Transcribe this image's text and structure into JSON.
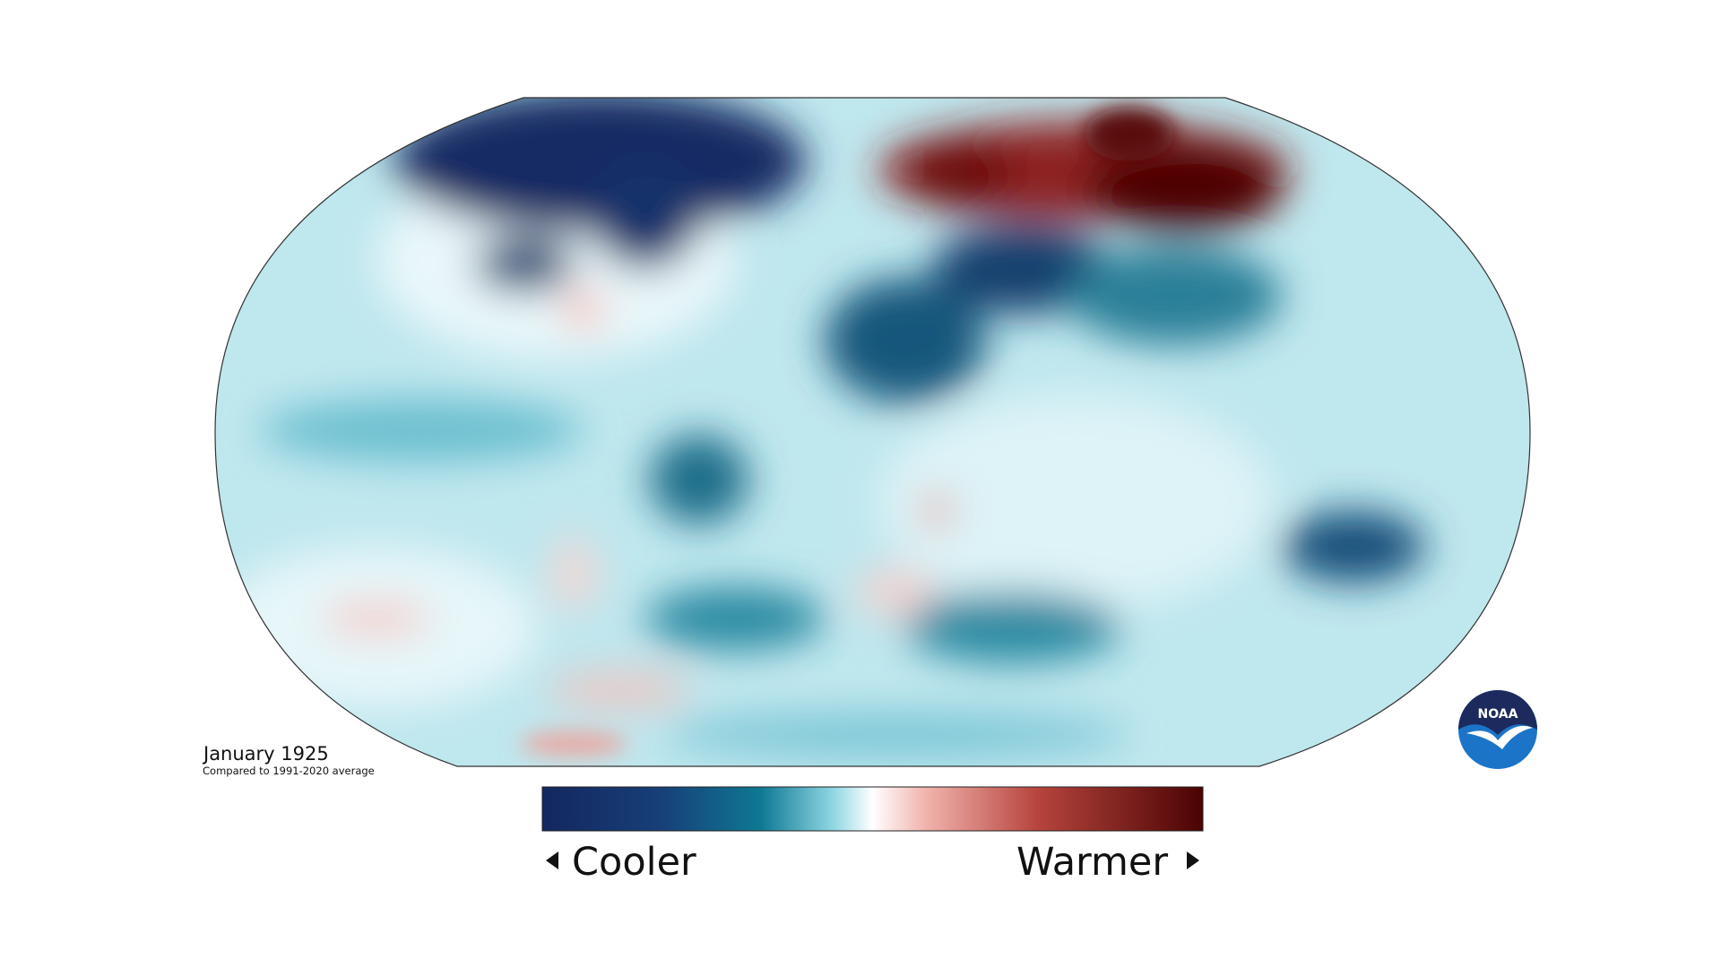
{
  "map": {
    "title": "January 1925",
    "subtitle": "Compared to 1991-2020 average"
  },
  "legend": {
    "low_label": "Cooler",
    "high_label": "Warmer"
  },
  "logo": {
    "text": "NOAA"
  }
}
